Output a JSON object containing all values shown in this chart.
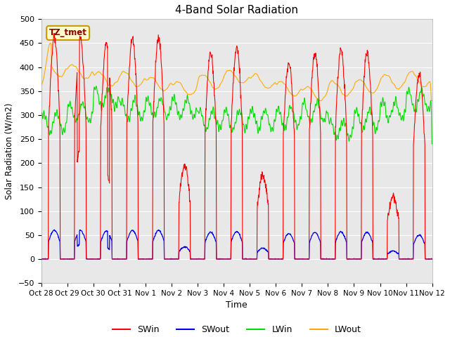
{
  "title": "4-Band Solar Radiation",
  "xlabel": "Time",
  "ylabel": "Solar Radiation (W/m2)",
  "ylim": [
    -50,
    500
  ],
  "x_tick_labels": [
    "Oct 28",
    "Oct 29",
    "Oct 30",
    "Oct 31",
    "Nov 1",
    "Nov 2",
    "Nov 3",
    "Nov 4",
    "Nov 5",
    "Nov 6",
    "Nov 7",
    "Nov 8",
    "Nov 9",
    "Nov 10",
    "Nov 11",
    "Nov 12"
  ],
  "colors": {
    "SWin": "#ff0000",
    "SWout": "#0000ee",
    "LWin": "#00dd00",
    "LWout": "#ffaa00"
  },
  "background_color": "#e8e8e8",
  "annotation_text": "TZ_tmet",
  "annotation_bg": "#ffffcc",
  "annotation_border": "#cc9900",
  "grid_color": "#ffffff",
  "n_days": 15
}
